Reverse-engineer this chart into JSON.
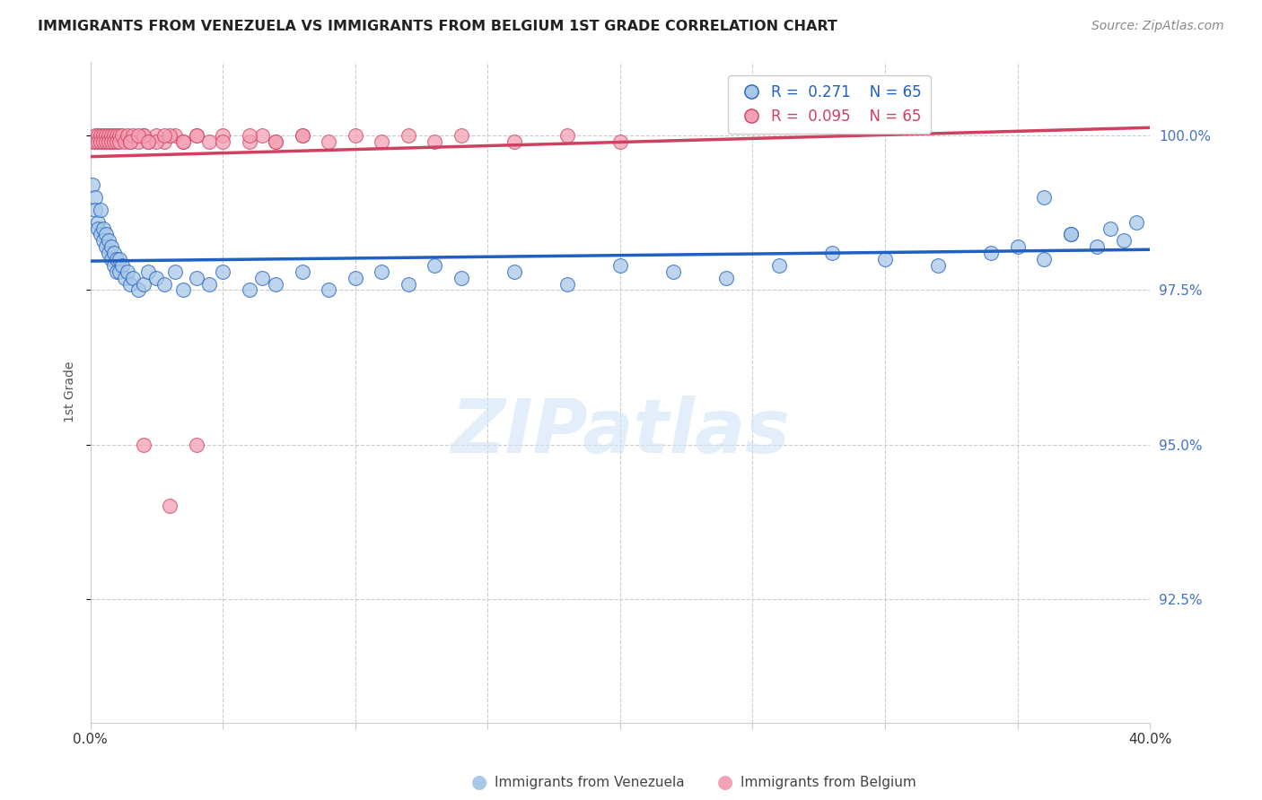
{
  "title": "IMMIGRANTS FROM VENEZUELA VS IMMIGRANTS FROM BELGIUM 1ST GRADE CORRELATION CHART",
  "source": "Source: ZipAtlas.com",
  "ylabel": "1st Grade",
  "legend_blue_label": "Immigrants from Venezuela",
  "legend_pink_label": "Immigrants from Belgium",
  "R_blue": 0.271,
  "N_blue": 65,
  "R_pink": 0.095,
  "N_pink": 65,
  "blue_color": "#a8c8e8",
  "pink_color": "#f4a0b5",
  "trendline_blue": "#2060c0",
  "trendline_pink": "#d04060",
  "xmin": 0.0,
  "xmax": 0.4,
  "ymin": 0.905,
  "ymax": 1.012,
  "yticks": [
    0.925,
    0.95,
    0.975,
    1.0
  ],
  "watermark_text": "ZIPatlas",
  "venezuela_x": [
    0.001,
    0.002,
    0.002,
    0.003,
    0.003,
    0.004,
    0.004,
    0.005,
    0.005,
    0.006,
    0.006,
    0.007,
    0.007,
    0.008,
    0.008,
    0.009,
    0.009,
    0.01,
    0.01,
    0.011,
    0.011,
    0.012,
    0.013,
    0.014,
    0.015,
    0.016,
    0.018,
    0.02,
    0.022,
    0.025,
    0.028,
    0.032,
    0.035,
    0.04,
    0.045,
    0.05,
    0.06,
    0.065,
    0.07,
    0.08,
    0.09,
    0.1,
    0.11,
    0.12,
    0.13,
    0.14,
    0.16,
    0.18,
    0.2,
    0.22,
    0.24,
    0.26,
    0.28,
    0.3,
    0.32,
    0.34,
    0.35,
    0.36,
    0.37,
    0.38,
    0.385,
    0.39,
    0.395,
    0.37,
    0.36
  ],
  "venezuela_y": [
    0.992,
    0.99,
    0.988,
    0.986,
    0.985,
    0.988,
    0.984,
    0.985,
    0.983,
    0.984,
    0.982,
    0.983,
    0.981,
    0.982,
    0.98,
    0.981,
    0.979,
    0.98,
    0.978,
    0.98,
    0.978,
    0.979,
    0.977,
    0.978,
    0.976,
    0.977,
    0.975,
    0.976,
    0.978,
    0.977,
    0.976,
    0.978,
    0.975,
    0.977,
    0.976,
    0.978,
    0.975,
    0.977,
    0.976,
    0.978,
    0.975,
    0.977,
    0.978,
    0.976,
    0.979,
    0.977,
    0.978,
    0.976,
    0.979,
    0.978,
    0.977,
    0.979,
    0.981,
    0.98,
    0.979,
    0.981,
    0.982,
    0.98,
    0.984,
    0.982,
    0.985,
    0.983,
    0.986,
    0.984,
    0.99
  ],
  "belgium_x": [
    0.001,
    0.002,
    0.002,
    0.003,
    0.003,
    0.004,
    0.004,
    0.005,
    0.005,
    0.006,
    0.006,
    0.007,
    0.007,
    0.008,
    0.008,
    0.009,
    0.009,
    0.01,
    0.01,
    0.011,
    0.011,
    0.012,
    0.013,
    0.014,
    0.015,
    0.016,
    0.018,
    0.02,
    0.022,
    0.025,
    0.028,
    0.032,
    0.035,
    0.04,
    0.045,
    0.05,
    0.06,
    0.065,
    0.07,
    0.08,
    0.09,
    0.1,
    0.11,
    0.12,
    0.13,
    0.14,
    0.16,
    0.18,
    0.2,
    0.03,
    0.025,
    0.02,
    0.015,
    0.018,
    0.022,
    0.028,
    0.035,
    0.04,
    0.05,
    0.06,
    0.07,
    0.08,
    0.02,
    0.03,
    0.04
  ],
  "belgium_y": [
    0.999,
    1.0,
    0.999,
    1.0,
    0.999,
    1.0,
    0.999,
    1.0,
    0.999,
    1.0,
    0.999,
    1.0,
    0.999,
    1.0,
    0.999,
    1.0,
    0.999,
    1.0,
    0.999,
    1.0,
    0.999,
    1.0,
    0.999,
    1.0,
    0.999,
    1.0,
    0.999,
    1.0,
    0.999,
    1.0,
    0.999,
    1.0,
    0.999,
    1.0,
    0.999,
    1.0,
    0.999,
    1.0,
    0.999,
    1.0,
    0.999,
    1.0,
    0.999,
    1.0,
    0.999,
    1.0,
    0.999,
    1.0,
    0.999,
    1.0,
    0.999,
    1.0,
    0.999,
    1.0,
    0.999,
    1.0,
    0.999,
    1.0,
    0.999,
    1.0,
    0.999,
    1.0,
    0.95,
    0.94,
    0.95
  ]
}
